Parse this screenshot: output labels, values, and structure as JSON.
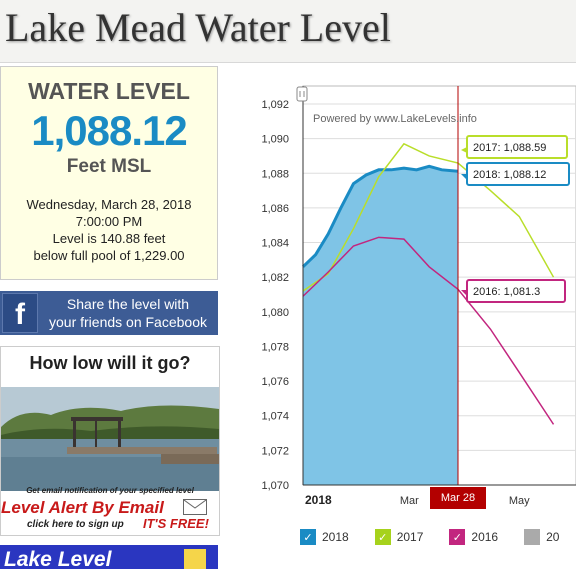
{
  "header": {
    "title": "Lake Mead Water Level"
  },
  "level_box": {
    "label": "WATER LEVEL",
    "value": "1,088.12",
    "unit": "Feet MSL",
    "date": "Wednesday, March 28, 2018",
    "time": "7:00:00 PM",
    "below_line": "Level is 140.88 feet",
    "full_pool_line": "below full pool of 1,229.00"
  },
  "facebook": {
    "icon": "facebook-icon",
    "line1": "Share the level with",
    "line2": "your friends on Facebook"
  },
  "promo": {
    "title": "How low will it go?",
    "notify": "Get email notification of your specified level",
    "alert": "Level Alert By Email",
    "click": "click here to sign up",
    "free": "IT'S FREE!"
  },
  "lake_level_banner": {
    "text": "Lake Level"
  },
  "chart": {
    "powered": "Powered by www.LakeLevels.info",
    "marker_label": "Mar 28",
    "x_tick_labels": [
      "2018",
      "Mar",
      "May"
    ],
    "tooltips": {
      "t2017": "2017: 1,088.59",
      "t2018": "2018: 1,088.12",
      "t2016": "2016: 1,081.3"
    },
    "legend": [
      {
        "label": "2018",
        "color": "#1a8bc4"
      },
      {
        "label": "2017",
        "color": "#a6d21c"
      },
      {
        "label": "2016",
        "color": "#c2267f"
      },
      {
        "label": "20",
        "color": "#aaaaaa"
      }
    ],
    "colors": {
      "2018_fill": "#7fc4e6",
      "2018_line": "#1a8bc4",
      "2017": "#b9de2a",
      "2016": "#c2267f",
      "marker": "#b30000"
    }
  },
  "chart_data": {
    "type": "area",
    "title": "",
    "xlabel": "",
    "ylabel": "",
    "ylim": [
      1070,
      1092
    ],
    "y_ticks": [
      1070,
      1072,
      1074,
      1076,
      1078,
      1080,
      1082,
      1084,
      1086,
      1088,
      1090,
      1092
    ],
    "x_tick_labels": [
      "2018",
      "Mar",
      "May"
    ],
    "marker": {
      "label": "Mar 28"
    },
    "series": [
      {
        "name": "2018",
        "x": [
          "Jan 1",
          "Jan 8",
          "Jan 15",
          "Jan 22",
          "Jan 29",
          "Feb 5",
          "Feb 12",
          "Feb 19",
          "Feb 26",
          "Mar 5",
          "Mar 12",
          "Mar 19",
          "Mar 28"
        ],
        "values": [
          1082.6,
          1083.3,
          1084.5,
          1086.0,
          1087.4,
          1087.9,
          1088.2,
          1088.2,
          1088.3,
          1088.2,
          1088.4,
          1088.2,
          1088.12
        ]
      },
      {
        "name": "2017",
        "x": [
          "Jan 1",
          "Jan 15",
          "Jan 29",
          "Feb 12",
          "Feb 26",
          "Mar 12",
          "Mar 28",
          "Apr 15",
          "May 1",
          "May 20"
        ],
        "values": [
          1081.2,
          1082.2,
          1084.8,
          1087.8,
          1089.7,
          1089.0,
          1088.59,
          1087.0,
          1085.5,
          1082.0
        ]
      },
      {
        "name": "2016",
        "x": [
          "Jan 1",
          "Jan 15",
          "Jan 29",
          "Feb 12",
          "Feb 26",
          "Mar 12",
          "Mar 28",
          "Apr 15",
          "May 1",
          "May 20"
        ],
        "values": [
          1080.9,
          1082.3,
          1083.8,
          1084.3,
          1084.2,
          1082.6,
          1081.3,
          1079.0,
          1076.5,
          1073.5
        ]
      }
    ]
  }
}
